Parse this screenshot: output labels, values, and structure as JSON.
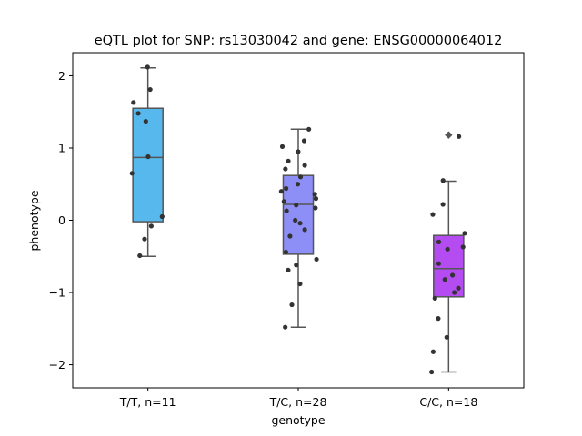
{
  "chart_data": {
    "type": "box",
    "title": "eQTL plot for SNP: rs13030042 and gene: ENSG00000064012",
    "xlabel": "genotype",
    "ylabel": "phenotype",
    "ylim": [
      -2.32,
      2.32
    ],
    "yticks": [
      2,
      1,
      0,
      -1,
      -2
    ],
    "ytick_labels": [
      "2",
      "1",
      "0",
      "−1",
      "−2"
    ],
    "grid": false,
    "legend": "none",
    "categories": [
      "T/T, n=11",
      "T/C, n=28",
      "C/C, n=18"
    ],
    "colors": [
      "#56b8ec",
      "#8e8ef7",
      "#b44cf2"
    ],
    "boxes": [
      {
        "category": "T/T, n=11",
        "q1": -0.02,
        "median": 0.87,
        "q3": 1.55,
        "whisker_low": -0.5,
        "whisker_high": 2.11,
        "fliers": []
      },
      {
        "category": "T/C, n=28",
        "q1": -0.47,
        "median": 0.22,
        "q3": 0.62,
        "whisker_low": -1.48,
        "whisker_high": 1.26,
        "fliers": []
      },
      {
        "category": "C/C, n=18",
        "q1": -1.06,
        "median": -0.67,
        "q3": -0.21,
        "whisker_low": -2.1,
        "whisker_high": 0.54,
        "fliers": [
          1.18
        ]
      }
    ],
    "points": [
      [
        2.12,
        1.81,
        1.63,
        1.48,
        1.37,
        0.88,
        0.65,
        0.05,
        -0.08,
        -0.26,
        -0.49
      ],
      [
        1.26,
        1.1,
        1.02,
        0.95,
        0.82,
        0.76,
        0.71,
        0.6,
        0.5,
        0.44,
        0.4,
        0.36,
        0.3,
        0.26,
        0.21,
        0.17,
        0.13,
        0.0,
        -0.04,
        -0.13,
        -0.22,
        -0.44,
        -0.54,
        -0.62,
        -0.69,
        -0.88,
        -1.17,
        -1.48
      ],
      [
        1.16,
        0.55,
        0.22,
        0.08,
        -0.18,
        -0.3,
        -0.37,
        -0.4,
        -0.6,
        -0.76,
        -0.82,
        -0.94,
        -1.0,
        -1.08,
        -1.36,
        -1.62,
        -1.82,
        -2.1
      ]
    ]
  }
}
